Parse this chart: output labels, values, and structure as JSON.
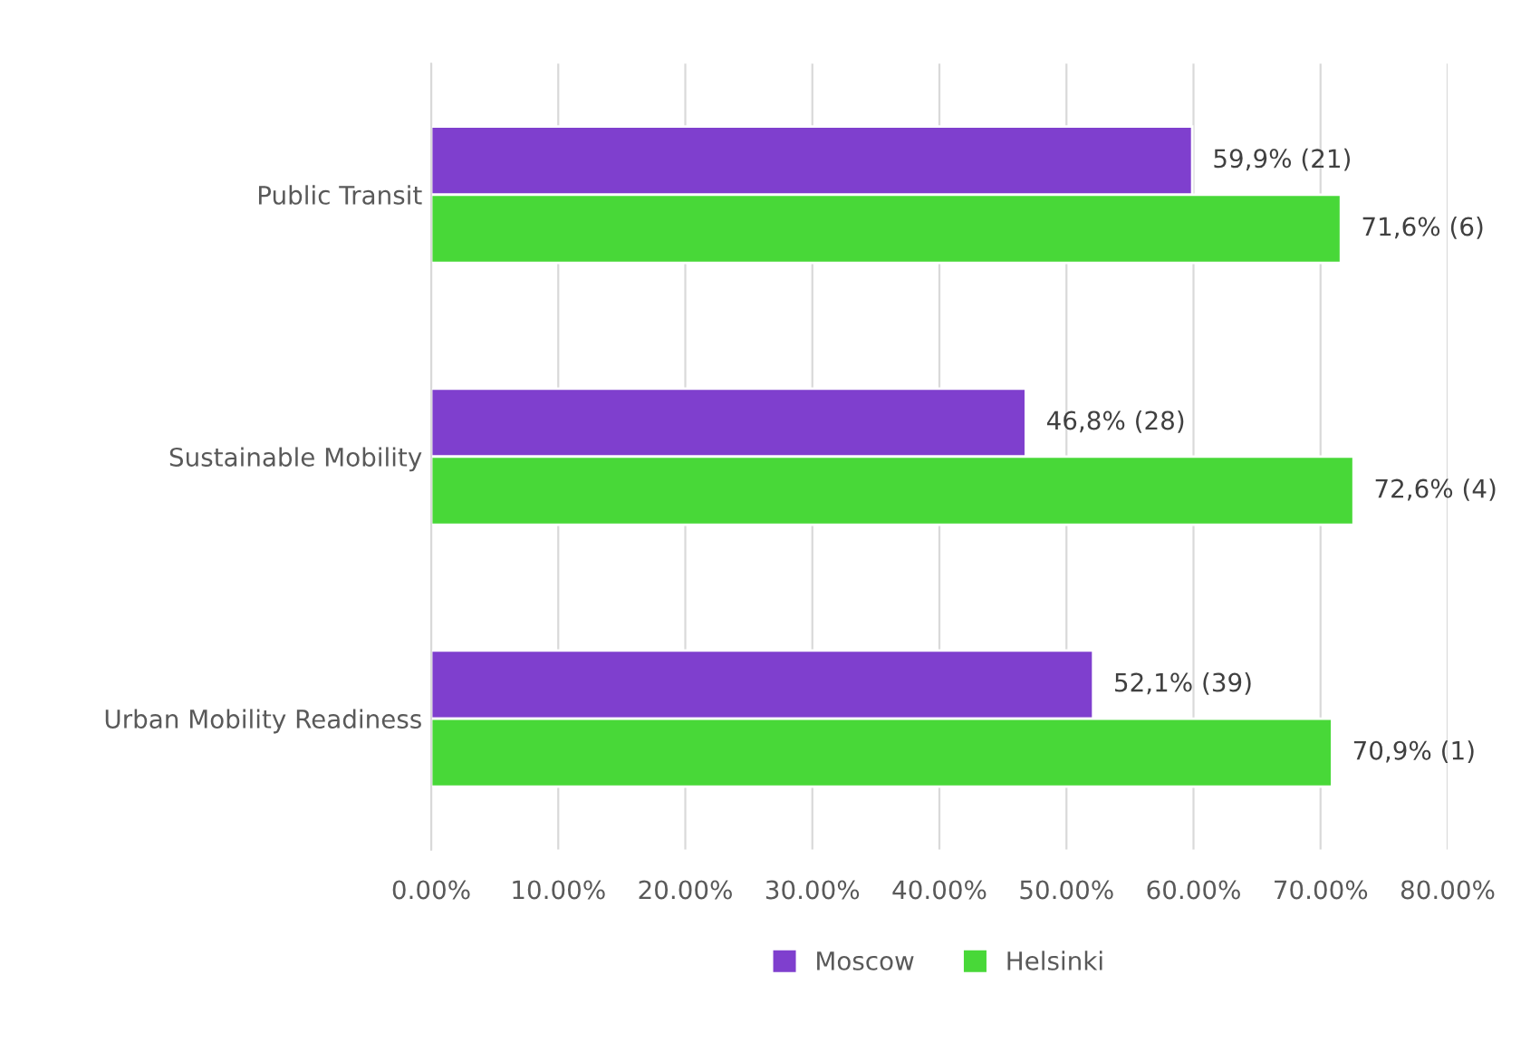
{
  "chart_data": {
    "type": "bar",
    "orientation": "horizontal",
    "categories": [
      "Public Transit",
      "Sustainable Mobility",
      "Urban Mobility Readiness"
    ],
    "series": [
      {
        "name": "Moscow",
        "color": "#7f3fce",
        "values": [
          59.9,
          46.8,
          52.1
        ],
        "value_labels": [
          "59,9% (21)",
          "46,8% (28)",
          "52,1% (39)"
        ]
      },
      {
        "name": "Helsinki",
        "color": "#48d838",
        "values": [
          71.6,
          72.6,
          70.9
        ],
        "value_labels": [
          "71,6% (6)",
          "72,6% (4)",
          "70,9% (1)"
        ]
      }
    ],
    "xlim": [
      0,
      80
    ],
    "xticks": [
      {
        "value": 0,
        "label": "0.00%"
      },
      {
        "value": 10,
        "label": "10.00%"
      },
      {
        "value": 20,
        "label": "20.00%"
      },
      {
        "value": 30,
        "label": "30.00%"
      },
      {
        "value": 40,
        "label": "40.00%"
      },
      {
        "value": 50,
        "label": "50.00%"
      },
      {
        "value": 60,
        "label": "60.00%"
      },
      {
        "value": 70,
        "label": "70.00%"
      },
      {
        "value": 80,
        "label": "80.00%"
      }
    ],
    "grid": "x",
    "legend": "bottom"
  }
}
